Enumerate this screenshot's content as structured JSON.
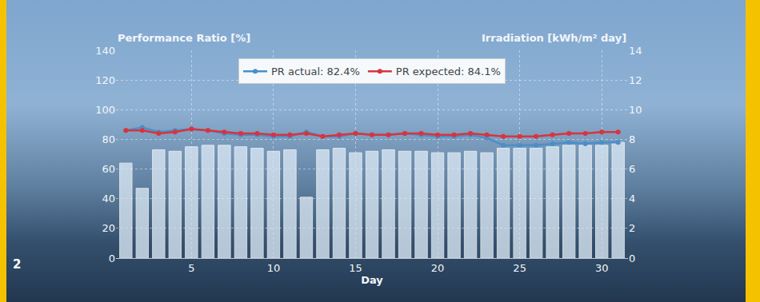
{
  "chart_data": {
    "type": "bar",
    "x_label": "Day",
    "y_label": "Performance Ratio [%]",
    "y2_label": "Irradiation [kWh/m² day]",
    "annotations": [
      "2"
    ],
    "x": [
      1,
      2,
      3,
      4,
      5,
      6,
      7,
      8,
      9,
      10,
      11,
      12,
      13,
      14,
      15,
      16,
      17,
      18,
      19,
      20,
      21,
      22,
      23,
      24,
      25,
      26,
      27,
      28,
      29,
      30,
      31
    ],
    "xlim": [
      0.4,
      31.6
    ],
    "xticks": [
      5,
      10,
      15,
      20,
      25,
      30
    ],
    "ylim": [
      0,
      140
    ],
    "yticks": [
      0,
      20,
      40,
      60,
      80,
      100,
      120,
      140
    ],
    "y2lim": [
      0,
      14
    ],
    "y2ticks": [
      0,
      2,
      4,
      6,
      8,
      10,
      12,
      14
    ],
    "grid": true,
    "legend": "top",
    "series": [
      {
        "type": "bar",
        "axis": "y2",
        "color": "#dbe9f5",
        "values": [
          6.4,
          4.7,
          7.3,
          7.2,
          7.5,
          7.6,
          7.6,
          7.5,
          7.4,
          7.2,
          7.3,
          4.1,
          7.3,
          7.4,
          7.1,
          7.2,
          7.3,
          7.2,
          7.2,
          7.1,
          7.1,
          7.2,
          7.1,
          7.4,
          7.4,
          7.4,
          7.5,
          7.6,
          7.6,
          7.6,
          7.8
        ]
      },
      {
        "name": "PR actual: 82.4%",
        "type": "line",
        "color": "#4a8fc9",
        "marker": "circle",
        "values": [
          86,
          88,
          85,
          86,
          87,
          86,
          84,
          83,
          83,
          82,
          82,
          85,
          82,
          82,
          84,
          83,
          83,
          84,
          83,
          82,
          82,
          83,
          81,
          76,
          76,
          76,
          77,
          78,
          77,
          78,
          78
        ]
      },
      {
        "name": "PR expected: 84.1%",
        "type": "line",
        "color": "#d8343f",
        "marker": "circle",
        "values": [
          86,
          86,
          84,
          85,
          87,
          86,
          85,
          84,
          84,
          83,
          83,
          84,
          82,
          83,
          84,
          83,
          83,
          84,
          84,
          83,
          83,
          84,
          83,
          82,
          82,
          82,
          83,
          84,
          84,
          85,
          85
        ]
      }
    ]
  }
}
